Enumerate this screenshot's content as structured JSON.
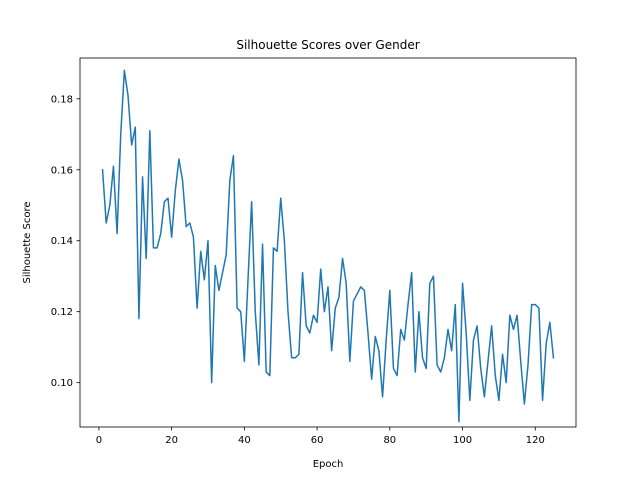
{
  "chart_data": {
    "type": "line",
    "title": "Silhouette Scores over Gender",
    "xlabel": "Epoch",
    "ylabel": "Silhouette Score",
    "xlim": [
      -5.2,
      131.2
    ],
    "ylim": [
      0.0875,
      0.1915
    ],
    "xticks": [
      0,
      20,
      40,
      60,
      80,
      100,
      120
    ],
    "yticks": [
      0.1,
      0.12,
      0.14,
      0.16,
      0.18
    ],
    "ytick_labels": [
      "0.10",
      "0.12",
      "0.14",
      "0.16",
      "0.18"
    ],
    "grid": false,
    "line_color": "#1f77b4",
    "series": [
      {
        "x": [
          1,
          2,
          3,
          4,
          5,
          6,
          7,
          8,
          9,
          10,
          11,
          12,
          13,
          14,
          15,
          16,
          17,
          18,
          19,
          20,
          21,
          22,
          23,
          24,
          25,
          26,
          27,
          28,
          29,
          30,
          31,
          32,
          33,
          34,
          35,
          36,
          37,
          38,
          39,
          40,
          41,
          42,
          43,
          44,
          45,
          46,
          47,
          48,
          49,
          50,
          51,
          52,
          53,
          54,
          55,
          56,
          57,
          58,
          59,
          60,
          61,
          62,
          63,
          64,
          65,
          66,
          67,
          68,
          69,
          70,
          71,
          72,
          73,
          74,
          75,
          76,
          77,
          78,
          79,
          80,
          81,
          82,
          83,
          84,
          85,
          86,
          87,
          88,
          89,
          90,
          91,
          92,
          93,
          94,
          95,
          96,
          97,
          98,
          99,
          100,
          101,
          102,
          103,
          104,
          105,
          106,
          107,
          108,
          109,
          110,
          111,
          112,
          113,
          114,
          115,
          116,
          117,
          118,
          119,
          120,
          121,
          122,
          123,
          124,
          125
        ],
        "values": [
          0.16,
          0.145,
          0.15,
          0.161,
          0.142,
          0.17,
          0.188,
          0.181,
          0.167,
          0.172,
          0.118,
          0.158,
          0.135,
          0.171,
          0.138,
          0.138,
          0.142,
          0.151,
          0.152,
          0.141,
          0.154,
          0.163,
          0.157,
          0.144,
          0.145,
          0.141,
          0.121,
          0.137,
          0.129,
          0.14,
          0.1,
          0.133,
          0.126,
          0.131,
          0.136,
          0.157,
          0.164,
          0.121,
          0.12,
          0.106,
          0.129,
          0.151,
          0.12,
          0.105,
          0.139,
          0.103,
          0.102,
          0.138,
          0.137,
          0.152,
          0.14,
          0.12,
          0.107,
          0.107,
          0.108,
          0.131,
          0.116,
          0.114,
          0.119,
          0.117,
          0.132,
          0.12,
          0.127,
          0.109,
          0.121,
          0.124,
          0.135,
          0.128,
          0.106,
          0.123,
          0.125,
          0.127,
          0.126,
          0.114,
          0.101,
          0.113,
          0.109,
          0.096,
          0.112,
          0.126,
          0.104,
          0.102,
          0.115,
          0.112,
          0.122,
          0.131,
          0.103,
          0.12,
          0.107,
          0.104,
          0.128,
          0.13,
          0.105,
          0.103,
          0.107,
          0.115,
          0.109,
          0.122,
          0.089,
          0.128,
          0.114,
          0.095,
          0.112,
          0.116,
          0.104,
          0.096,
          0.106,
          0.116,
          0.102,
          0.095,
          0.108,
          0.1,
          0.119,
          0.115,
          0.119,
          0.106,
          0.094,
          0.105,
          0.122,
          0.122,
          0.121,
          0.095,
          0.111,
          0.117,
          0.107
        ]
      }
    ]
  }
}
